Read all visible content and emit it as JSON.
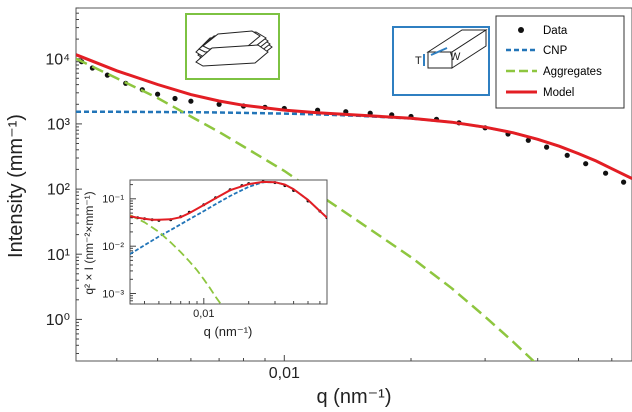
{
  "chart_data": {
    "type": "scatter",
    "xlabel": "q (nm⁻¹)",
    "ylabel": "Intensity (mm⁻¹)",
    "x_scale": "log",
    "y_scale": "log",
    "xlim": [
      0.0032,
      0.067
    ],
    "ylim": [
      0.23,
      60000
    ],
    "x_tick_labels": [
      "0,01"
    ],
    "y_tick_labels": [
      "10⁰",
      "10¹",
      "10²",
      "10³",
      "10⁴"
    ],
    "legend": {
      "placement": "top-right",
      "entries": [
        "Data",
        "CNP",
        "Aggregates",
        "Model"
      ]
    },
    "series": [
      {
        "name": "Data",
        "style": "markers",
        "color": "#111111",
        "x": [
          0.0033,
          0.0035,
          0.0038,
          0.0042,
          0.0046,
          0.005,
          0.0055,
          0.006,
          0.007,
          0.008,
          0.009,
          0.01,
          0.012,
          0.014,
          0.016,
          0.018,
          0.02,
          0.023,
          0.026,
          0.03,
          0.034,
          0.038,
          0.042,
          0.047,
          0.052,
          0.058,
          0.064
        ],
        "y": [
          9000,
          7200,
          5600,
          4200,
          3350,
          2850,
          2450,
          2230,
          2000,
          1880,
          1790,
          1720,
          1620,
          1540,
          1460,
          1380,
          1300,
          1170,
          1040,
          870,
          700,
          560,
          440,
          330,
          245,
          175,
          128
        ]
      },
      {
        "name": "CNP",
        "style": "dashed",
        "color": "#2275b8",
        "x": [
          0.0032,
          0.004,
          0.005,
          0.006,
          0.007,
          0.008,
          0.01,
          0.012,
          0.015,
          0.02,
          0.025,
          0.03,
          0.035,
          0.04,
          0.045,
          0.05,
          0.055,
          0.06,
          0.067
        ],
        "y": [
          1540,
          1530,
          1520,
          1510,
          1495,
          1475,
          1440,
          1400,
          1330,
          1210,
          1060,
          890,
          730,
          580,
          455,
          350,
          270,
          205,
          145
        ]
      },
      {
        "name": "Aggregates",
        "style": "dashed",
        "color": "#8ec63f",
        "x": [
          0.0032,
          0.004,
          0.005,
          0.006,
          0.007,
          0.008,
          0.01,
          0.012,
          0.015,
          0.02,
          0.025,
          0.03,
          0.035,
          0.04
        ],
        "y": [
          10000,
          5000,
          2500,
          1300,
          750,
          450,
          190,
          85,
          32,
          9,
          3,
          1.1,
          0.45,
          0.2
        ]
      },
      {
        "name": "Model",
        "style": "solid",
        "color": "#e31e24",
        "x": [
          0.0032,
          0.004,
          0.005,
          0.006,
          0.007,
          0.008,
          0.01,
          0.012,
          0.015,
          0.02,
          0.025,
          0.03,
          0.035,
          0.04,
          0.045,
          0.05,
          0.055,
          0.06,
          0.067
        ],
        "y": [
          11540,
          6530,
          4020,
          2810,
          2245,
          1925,
          1630,
          1485,
          1362,
          1219,
          1063,
          891,
          730,
          580,
          455,
          350,
          270,
          205,
          145
        ]
      }
    ],
    "inset": {
      "type": "line",
      "xlabel": "q (nm⁻¹)",
      "ylabel": "q² × I (nm⁻²×mm⁻¹)",
      "x_scale": "log",
      "y_scale": "log",
      "xlim": [
        0.0032,
        0.067
      ],
      "ylim": [
        0.0006,
        0.25
      ],
      "x_tick_labels": [
        "0,01"
      ],
      "y_tick_labels": [
        "10⁻³",
        "10⁻²",
        "10⁻¹"
      ],
      "series": [
        {
          "name": "Data",
          "style": "markers",
          "color": "#111111",
          "x": [
            0.0033,
            0.0036,
            0.004,
            0.0045,
            0.005,
            0.006,
            0.007,
            0.008,
            0.01,
            0.012,
            0.015,
            0.018,
            0.02,
            0.025,
            0.03,
            0.035,
            0.04,
            0.05,
            0.06,
            0.067
          ],
          "y": [
            0.042,
            0.04,
            0.038,
            0.036,
            0.035,
            0.036,
            0.042,
            0.052,
            0.075,
            0.105,
            0.155,
            0.19,
            0.21,
            0.23,
            0.22,
            0.19,
            0.15,
            0.09,
            0.055,
            0.04
          ]
        },
        {
          "name": "CNP",
          "style": "dashed",
          "color": "#2275b8",
          "x": [
            0.0032,
            0.004,
            0.005,
            0.006,
            0.007,
            0.008,
            0.01,
            0.012,
            0.015,
            0.02,
            0.025,
            0.03,
            0.035,
            0.04,
            0.05,
            0.06,
            0.067
          ],
          "y": [
            0.0068,
            0.0105,
            0.016,
            0.022,
            0.029,
            0.037,
            0.055,
            0.077,
            0.115,
            0.18,
            0.225,
            0.225,
            0.2,
            0.16,
            0.095,
            0.055,
            0.04
          ]
        },
        {
          "name": "Aggregates",
          "style": "dashed",
          "color": "#8ec63f",
          "x": [
            0.0032,
            0.004,
            0.005,
            0.006,
            0.007,
            0.008,
            0.009,
            0.01,
            0.011,
            0.012,
            0.013
          ],
          "y": [
            0.045,
            0.032,
            0.02,
            0.012,
            0.0075,
            0.0048,
            0.0031,
            0.002,
            0.0013,
            0.00085,
            0.0006
          ]
        },
        {
          "name": "Model",
          "style": "solid",
          "color": "#e31e24",
          "x": [
            0.0032,
            0.0036,
            0.004,
            0.0045,
            0.005,
            0.006,
            0.007,
            0.008,
            0.01,
            0.012,
            0.015,
            0.02,
            0.025,
            0.03,
            0.035,
            0.04,
            0.05,
            0.06,
            0.067
          ],
          "y": [
            0.043,
            0.04,
            0.038,
            0.036,
            0.036,
            0.037,
            0.041,
            0.05,
            0.074,
            0.103,
            0.152,
            0.205,
            0.228,
            0.225,
            0.2,
            0.16,
            0.095,
            0.055,
            0.04
          ]
        }
      ]
    },
    "annotations": [
      {
        "name": "stacked-platelets-illustration",
        "border_color": "#7dc242"
      },
      {
        "name": "nanocrystal-dimensions-illustration",
        "border_color": "#2f7fc1",
        "labels": [
          "T",
          "W"
        ]
      }
    ]
  }
}
